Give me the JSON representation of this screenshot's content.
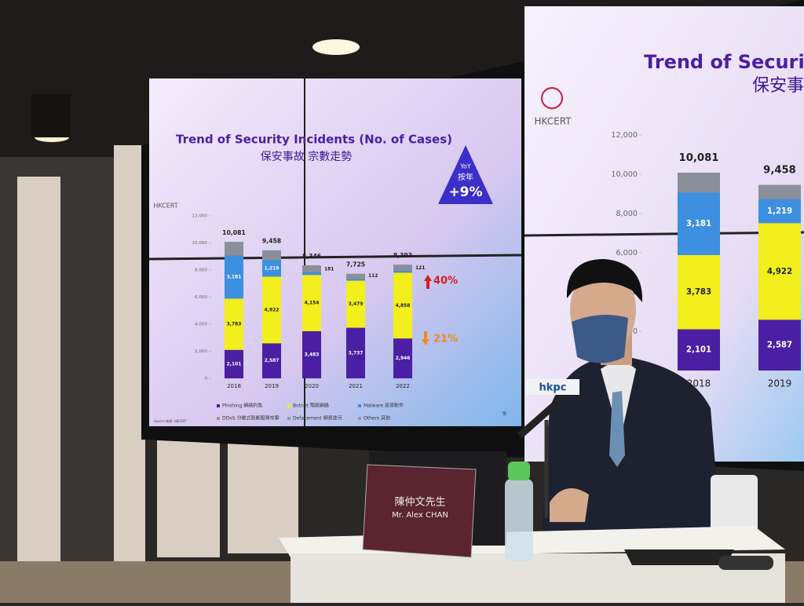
{
  "chart_data": {
    "type": "bar",
    "stacked": true,
    "title": "Trend of Security Incidents (No. of Cases)",
    "subtitle": "保安事故 宗數走勢",
    "categories": [
      "2018",
      "2019",
      "2020",
      "2021",
      "2022"
    ],
    "series": [
      {
        "name": "Phishing 網絡釣魚",
        "color": "#4b1fa3",
        "values": [
          2101,
          2587,
          3483,
          3737,
          2946
        ],
        "value_labels": [
          "2,101",
          "2,587",
          "3,483",
          "3,737",
          "2,946"
        ]
      },
      {
        "name": "Botnet 殭屍網絡",
        "color": "#f2ef1c",
        "values": [
          3783,
          4922,
          4154,
          3479,
          4858
        ],
        "value_labels": [
          "3,783",
          "4,922",
          "4,154",
          "3,479",
          "4,858"
        ]
      },
      {
        "name": "Malware 惡意軟件",
        "color": "#3d8fe0",
        "values": [
          3181,
          1219,
          181,
          112,
          121
        ],
        "value_labels": [
          "3,181",
          "1,219",
          "181",
          "112",
          "121"
        ]
      }
    ],
    "totals": {
      "color": "#8a8f9a",
      "values": [
        10081,
        9458,
        8346,
        7725,
        8393
      ],
      "value_labels": [
        "10,081",
        "9,458",
        "8,346",
        "7,725",
        "8,393"
      ]
    },
    "other_legend": [
      "DDoS 分散式阻斷服務攻擊",
      "Defacement 網頁塗污",
      "Others 其他"
    ],
    "ylim": [
      0,
      12000
    ],
    "yticks": [
      0,
      {
        "value": 2000,
        "label": "2,000"
      },
      {
        "value": 4000,
        "label": "4,000"
      },
      {
        "value": 6000,
        "label": "6,000"
      },
      {
        "value": 8000,
        "label": "8,000"
      },
      {
        "value": 10000,
        "label": "10,000"
      },
      {
        "value": 12000,
        "label": "12,000"
      }
    ],
    "annotations": {
      "yoy": "YoY",
      "yoy_zh": "按年",
      "yoy_value": "+9%",
      "up": "40%",
      "down": "21%"
    },
    "logo": "HKCERT",
    "page": "9",
    "source": "Source 來源: HKCERT"
  },
  "nameplate": {
    "name_zh": "陳仲文先生",
    "name_en": "Mr. Alex CHAN"
  },
  "microphone": {
    "logo": "hkpc"
  }
}
